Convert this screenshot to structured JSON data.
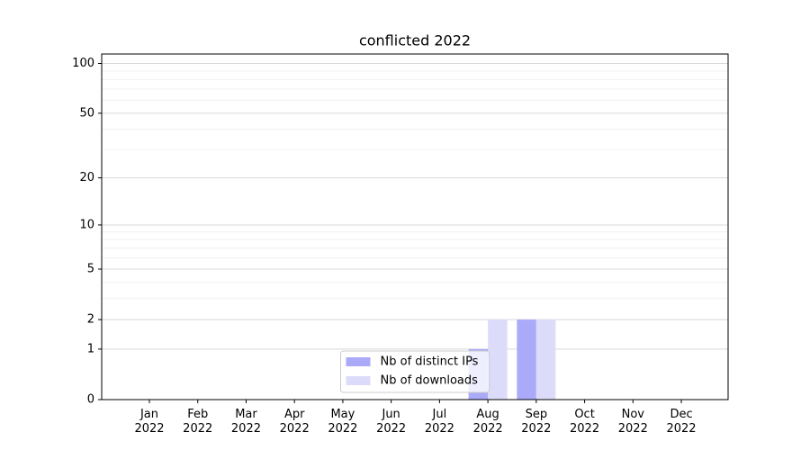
{
  "chart_data": {
    "type": "bar",
    "title": "conflicted 2022",
    "categories": [
      "Jan 2022",
      "Feb 2022",
      "Mar 2022",
      "Apr 2022",
      "May 2022",
      "Jun 2022",
      "Jul 2022",
      "Aug 2022",
      "Sep 2022",
      "Oct 2022",
      "Nov 2022",
      "Dec 2022"
    ],
    "series": [
      {
        "name": "Nb of distinct IPs",
        "color": "#aaaaf8",
        "values": [
          0,
          0,
          0,
          0,
          0,
          0,
          0,
          1,
          2,
          0,
          0,
          0
        ]
      },
      {
        "name": "Nb of downloads",
        "color": "#dcdcfa",
        "values": [
          0,
          0,
          0,
          0,
          0,
          0,
          0,
          2,
          2,
          0,
          0,
          0
        ]
      }
    ],
    "yscale": "log1p",
    "ylim": [
      0,
      114
    ],
    "yticks": [
      0,
      1,
      2,
      5,
      10,
      20,
      50,
      100
    ],
    "yminorticks": [
      3,
      4,
      6,
      7,
      8,
      9,
      30,
      40,
      60,
      70,
      80,
      90
    ],
    "grid": true,
    "legend": "lower center"
  }
}
